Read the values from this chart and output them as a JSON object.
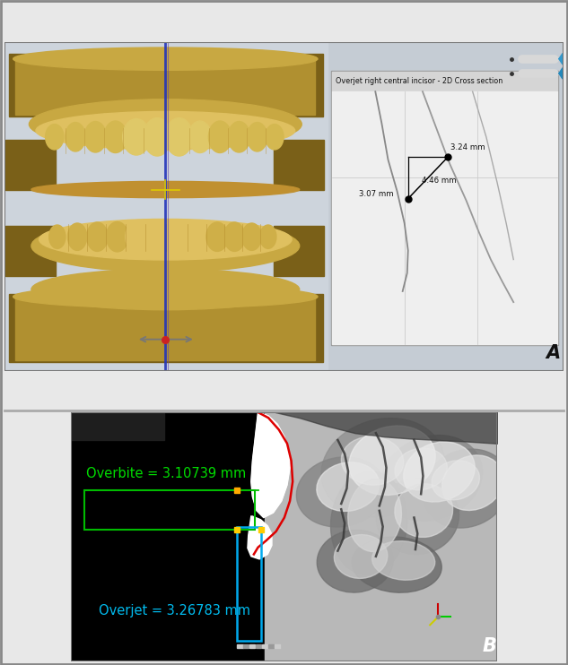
{
  "panel_a_bg": "#c5ccd4",
  "panel_b_bg": "#000000",
  "panel_a_label": "A",
  "panel_b_label": "B",
  "border_color": "#888888",
  "cross_section_title": "Overjet right central incisor - 2D Cross section",
  "cross_section_title_bg": "#d2d2d2",
  "cross_section_bg": "#efefef",
  "meas_324": "3.24 mm",
  "meas_307": "3.07 mm",
  "meas_446": "4.46 mm",
  "overbite_text": "Overbite = 3.10739 mm",
  "overjet_text": "Overjet = 3.26783 mm",
  "overbite_color": "#00dd00",
  "overjet_color": "#00bbee",
  "green_rect_color": "#00bb00",
  "blue_rect_color": "#00aaee",
  "tooth_main": "#c8a842",
  "tooth_dark": "#7a6018",
  "tooth_mid": "#b09030",
  "tooth_light": "#dfc060",
  "tooth_shadow": "#9a7820",
  "bg_light": "#d0d8e0",
  "blue_line": "#3344cc",
  "purple_line": "#6644aa",
  "red_dot": "#cc2222",
  "label_fontsize": 15,
  "cs_label_fontsize": 5.8,
  "meas_fontsize": 10.5
}
